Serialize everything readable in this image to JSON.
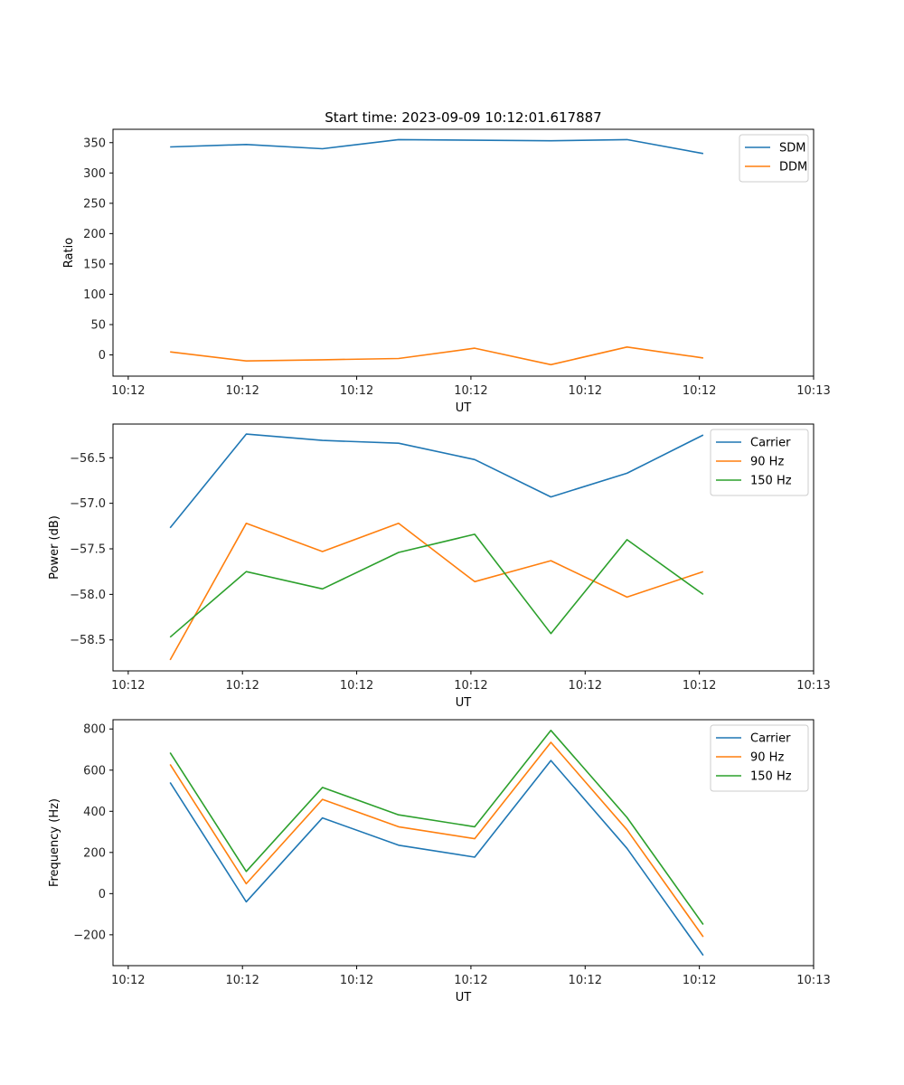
{
  "chart_data": [
    {
      "type": "line",
      "title": "Start time: 2023-09-09 10:12:01.617887",
      "xlabel": "UT",
      "ylabel": "Ratio",
      "xlim": [
        -0.2,
        9
      ],
      "ylim": [
        -35,
        372
      ],
      "x": [
        0.55,
        1.55,
        2.55,
        3.55,
        4.55,
        5.55,
        6.55,
        7.55
      ],
      "x_ticks": [
        0,
        1.5,
        3,
        4.5,
        6,
        7.5,
        9
      ],
      "x_tick_labels": [
        "10:12",
        "10:12",
        "10:12",
        "10:12",
        "10:12",
        "10:12",
        "10:13"
      ],
      "y_ticks": [
        0,
        50,
        100,
        150,
        200,
        250,
        300,
        350
      ],
      "y_tick_labels": [
        "0",
        "50",
        "100",
        "150",
        "200",
        "250",
        "300",
        "350"
      ],
      "legend_position": "top-right",
      "series": [
        {
          "name": "SDM",
          "color": "#1f77b4",
          "values": [
            343,
            347,
            340,
            355,
            354,
            353,
            355,
            332
          ]
        },
        {
          "name": "DDM",
          "color": "#ff7f0e",
          "values": [
            5,
            -10,
            -8,
            -6,
            11,
            -16,
            13,
            -5
          ]
        }
      ]
    },
    {
      "type": "line",
      "title": "",
      "xlabel": "UT",
      "ylabel": "Power (dB)",
      "xlim": [
        -0.2,
        9
      ],
      "ylim": [
        -58.84,
        -56.13
      ],
      "x": [
        0.55,
        1.55,
        2.55,
        3.55,
        4.55,
        5.55,
        6.55,
        7.55
      ],
      "x_ticks": [
        0,
        1.5,
        3,
        4.5,
        6,
        7.5,
        9
      ],
      "x_tick_labels": [
        "10:12",
        "10:12",
        "10:12",
        "10:12",
        "10:12",
        "10:12",
        "10:13"
      ],
      "y_ticks": [
        -58.5,
        -58.0,
        -57.5,
        -57.0,
        -56.5
      ],
      "y_tick_labels": [
        "−58.5",
        "−58.0",
        "−57.5",
        "−57.0",
        "−56.5"
      ],
      "legend_position": "top-right",
      "series": [
        {
          "name": "Carrier",
          "color": "#1f77b4",
          "values": [
            -57.27,
            -56.24,
            -56.31,
            -56.34,
            -56.52,
            -56.93,
            -56.67,
            -56.25
          ]
        },
        {
          "name": "90 Hz",
          "color": "#ff7f0e",
          "values": [
            -58.72,
            -57.22,
            -57.53,
            -57.22,
            -57.86,
            -57.63,
            -58.03,
            -57.75
          ]
        },
        {
          "name": "150 Hz",
          "color": "#2ca02c",
          "values": [
            -58.47,
            -57.75,
            -57.94,
            -57.54,
            -57.34,
            -58.43,
            -57.4,
            -58.0
          ]
        }
      ]
    },
    {
      "type": "line",
      "title": "",
      "xlabel": "UT",
      "ylabel": "Frequency (Hz)",
      "xlim": [
        -0.2,
        9
      ],
      "ylim": [
        -350,
        845
      ],
      "x": [
        0.55,
        1.55,
        2.55,
        3.55,
        4.55,
        5.55,
        6.55,
        7.55
      ],
      "x_ticks": [
        0,
        1.5,
        3,
        4.5,
        6,
        7.5,
        9
      ],
      "x_tick_labels": [
        "10:12",
        "10:12",
        "10:12",
        "10:12",
        "10:12",
        "10:12",
        "10:13"
      ],
      "y_ticks": [
        -200,
        0,
        200,
        400,
        600,
        800
      ],
      "y_tick_labels": [
        "−200",
        "0",
        "200",
        "400",
        "600",
        "800"
      ],
      "legend_position": "top-right",
      "series": [
        {
          "name": "Carrier",
          "color": "#1f77b4",
          "values": [
            540,
            -40,
            368,
            235,
            177,
            647,
            220,
            -300
          ]
        },
        {
          "name": "90 Hz",
          "color": "#ff7f0e",
          "values": [
            628,
            48,
            458,
            325,
            267,
            735,
            310,
            -210
          ]
        },
        {
          "name": "150 Hz",
          "color": "#2ca02c",
          "values": [
            685,
            108,
            516,
            383,
            325,
            793,
            370,
            -150
          ]
        }
      ]
    }
  ]
}
